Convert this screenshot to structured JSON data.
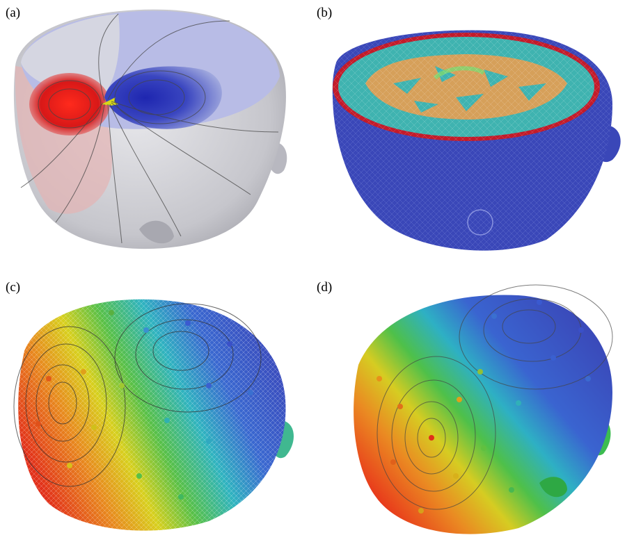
{
  "panels": [
    {
      "id": "a",
      "label": "(a)"
    },
    {
      "id": "b",
      "label": "(b)"
    },
    {
      "id": "c",
      "label": "(c)"
    },
    {
      "id": "d",
      "label": "(d)"
    }
  ],
  "colors": {
    "scalp_grey": "#c9c9cf",
    "dipole_red": "#e01414",
    "dipole_blue": "#2a2fb4",
    "mesh_blue": "#3a47b8",
    "skull_red": "#c21b2a",
    "csf_teal": "#3fb3b0",
    "brain_orange": "#d6a05a",
    "potential_red": "#e62a1a",
    "potential_yellow": "#e8d21a",
    "potential_green": "#3ec04a",
    "potential_blue": "#3a5ad0"
  }
}
